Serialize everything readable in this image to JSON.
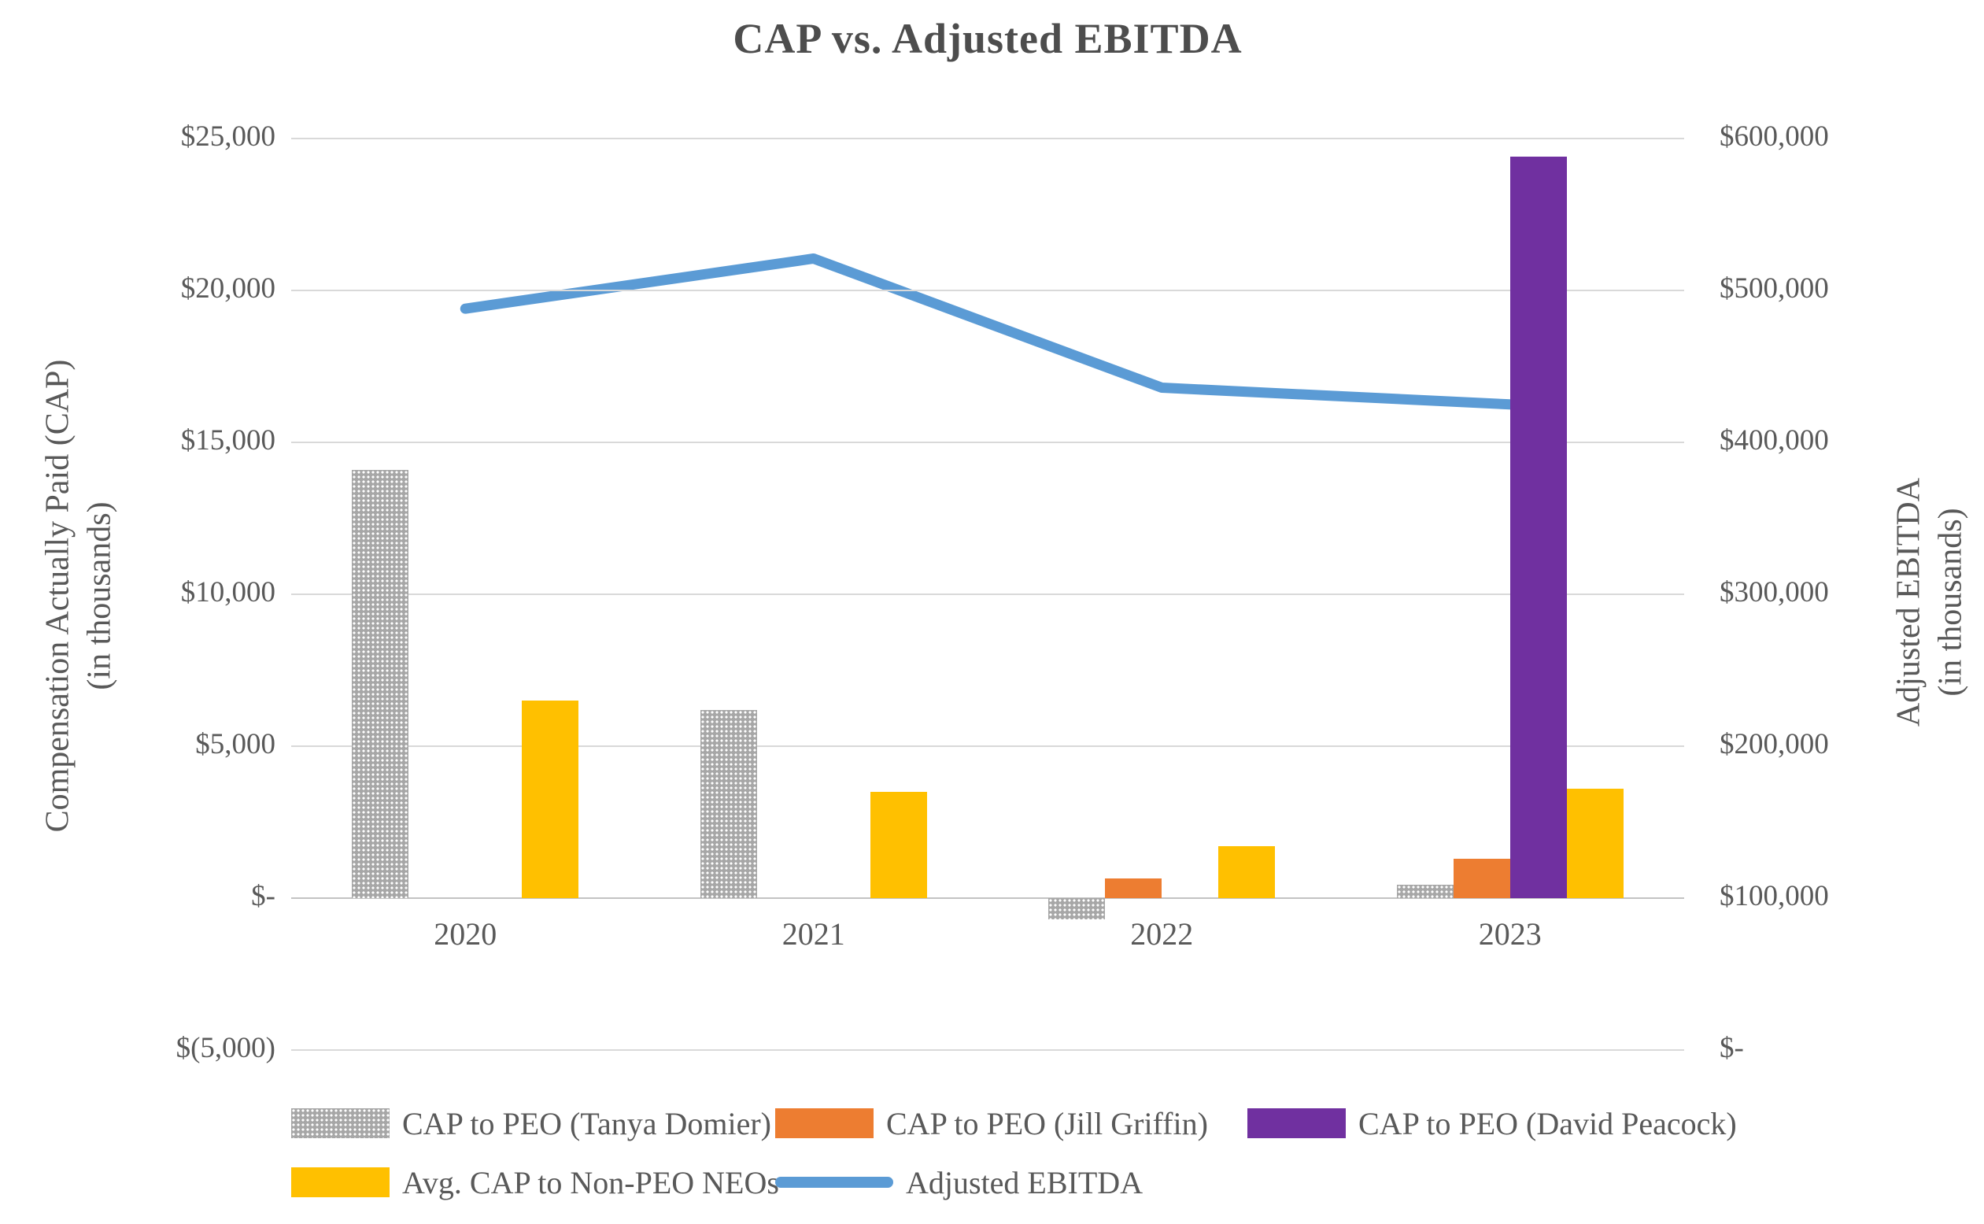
{
  "title": "CAP vs. Adjusted EBITDA",
  "chart_data": {
    "type": "bar",
    "subtype": "combo-bar-line-dual-axis",
    "title": "CAP vs. Adjusted EBITDA",
    "categories": [
      "2020",
      "2021",
      "2022",
      "2023"
    ],
    "series": [
      {
        "name": "CAP to PEO (Tanya Domier)",
        "type": "bar",
        "axis": "left",
        "color": "#a7a7a7",
        "pattern": "dotted",
        "values": [
          14100,
          6200,
          -700,
          450
        ]
      },
      {
        "name": "CAP to PEO (Jill Griffin)",
        "type": "bar",
        "axis": "left",
        "color": "#ed7d31",
        "pattern": "solid",
        "values": [
          null,
          null,
          650,
          1300
        ]
      },
      {
        "name": "CAP to PEO (David Peacock)",
        "type": "bar",
        "axis": "left",
        "color": "#7030a0",
        "pattern": "solid",
        "values": [
          null,
          null,
          null,
          24400
        ]
      },
      {
        "name": "Avg. CAP to Non-PEO NEOs",
        "type": "bar",
        "axis": "left",
        "color": "#ffc000",
        "pattern": "solid",
        "values": [
          6500,
          3500,
          1700,
          3600
        ]
      },
      {
        "name": "Adjusted EBITDA",
        "type": "line",
        "axis": "right",
        "color": "#5b9bd5",
        "values": [
          488000,
          521000,
          436000,
          425000
        ]
      }
    ],
    "left_axis": {
      "title_line1": "Compensation Actually Paid (CAP)",
      "title_line2": "(in thousands)",
      "min": -5000,
      "max": 25000,
      "tick_step": 5000,
      "tick_labels": [
        "$25,000",
        "$20,000",
        "$15,000",
        "$10,000",
        "$5,000",
        "$-",
        "$(5,000)"
      ]
    },
    "right_axis": {
      "title_line1": "Adjusted EBITDA",
      "title_line2": "(in thousands)",
      "min": 0,
      "max": 600000,
      "tick_step": 100000,
      "tick_labels": [
        "$600,000",
        "$500,000",
        "$400,000",
        "$300,000",
        "$200,000",
        "$100,000",
        "$-"
      ]
    },
    "grid": "horizontal-on",
    "legend_position": "bottom"
  },
  "legend": {
    "rows": [
      {
        "y": 1399,
        "items": [
          {
            "series": 0,
            "x": 370
          },
          {
            "series": 1,
            "x": 985
          },
          {
            "series": 2,
            "x": 1585
          }
        ]
      },
      {
        "y": 1474,
        "items": [
          {
            "series": 3,
            "x": 370
          },
          {
            "series": 4,
            "x": 985
          }
        ]
      }
    ]
  },
  "colors": {
    "gridline": "#d9d9d9",
    "zero_axis_line": "#c3c3c3",
    "text": "#595959",
    "title_text": "#4d4d4d",
    "background": "#ffffff"
  }
}
